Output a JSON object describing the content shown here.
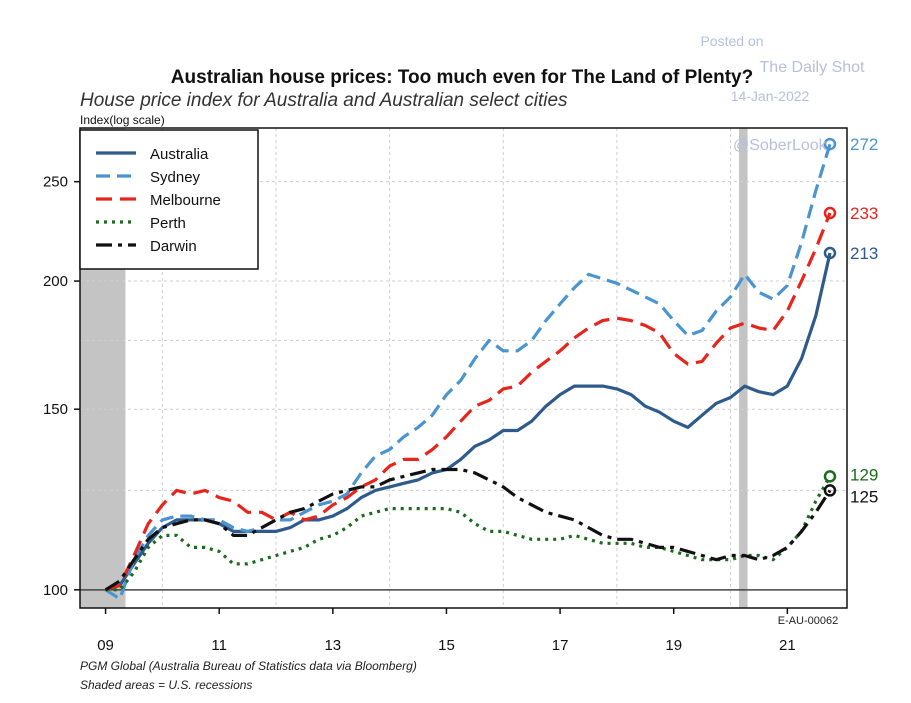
{
  "watermark": {
    "posted_on": "Posted on",
    "source": "The Daily Shot",
    "date": "14-Jan-2022",
    "handle": "@SoberLook"
  },
  "chart_data": {
    "type": "line",
    "title": "Australian house prices: Too much even for The Land of Plenty?",
    "subtitle": "House price index for Australia and Australian select cities",
    "ylabel": "Index(log scale)",
    "yscale": "log",
    "ylim": [
      96,
      282
    ],
    "xlim": [
      2008.55,
      2022.05
    ],
    "y_ticks": [
      "100",
      "150",
      "200",
      "250"
    ],
    "y_tick_values": [
      100,
      150,
      200,
      250
    ],
    "y_grid_values": [
      100,
      125,
      150,
      175,
      200,
      250
    ],
    "x_ticks": [
      "09",
      "11",
      "13",
      "15",
      "17",
      "19",
      "21"
    ],
    "x_tick_values": [
      2009,
      2011,
      2013,
      2015,
      2017,
      2019,
      2021
    ],
    "x_grid_values": [
      2010,
      2012,
      2014,
      2016,
      2018,
      2020
    ],
    "recessions": [
      [
        2008.55,
        2009.35
      ],
      [
        2020.15,
        2020.3
      ]
    ],
    "legend_position": "top-left",
    "series": [
      {
        "name": "Australia",
        "color": "#2e5a8c",
        "dash": "solid",
        "end_label": "213",
        "x": [
          2009.0,
          2009.25,
          2009.5,
          2009.75,
          2010.0,
          2010.25,
          2010.5,
          2010.75,
          2011.0,
          2011.25,
          2011.5,
          2011.75,
          2012.0,
          2012.25,
          2012.5,
          2012.75,
          2013.0,
          2013.25,
          2013.5,
          2013.75,
          2014.0,
          2014.25,
          2014.5,
          2014.75,
          2015.0,
          2015.25,
          2015.5,
          2015.75,
          2016.0,
          2016.25,
          2016.5,
          2016.75,
          2017.0,
          2017.25,
          2017.5,
          2017.75,
          2018.0,
          2018.25,
          2018.5,
          2018.75,
          2019.0,
          2019.25,
          2019.5,
          2019.75,
          2020.0,
          2020.25,
          2020.5,
          2020.75,
          2021.0,
          2021.25,
          2021.5,
          2021.75
        ],
        "y": [
          100,
          101,
          106,
          111,
          115,
          117,
          117,
          117,
          116,
          114,
          114,
          114,
          114,
          115,
          117,
          117,
          118,
          120,
          123,
          125,
          126,
          127,
          128,
          130,
          131,
          134,
          138,
          140,
          143,
          143,
          146,
          151,
          155,
          158,
          158,
          158,
          157,
          155,
          151,
          149,
          146,
          144,
          148,
          152,
          154,
          158,
          156,
          155,
          158,
          168,
          185,
          213
        ]
      },
      {
        "name": "Sydney",
        "color": "#4a94d0",
        "dash": "14,7",
        "end_label": "272",
        "x": [
          2009.0,
          2009.25,
          2009.5,
          2009.75,
          2010.0,
          2010.25,
          2010.5,
          2010.75,
          2011.0,
          2011.25,
          2011.5,
          2011.75,
          2012.0,
          2012.25,
          2012.5,
          2012.75,
          2013.0,
          2013.25,
          2013.5,
          2013.75,
          2014.0,
          2014.25,
          2014.5,
          2014.75,
          2015.0,
          2015.25,
          2015.5,
          2015.75,
          2016.0,
          2016.25,
          2016.5,
          2016.75,
          2017.0,
          2017.25,
          2017.5,
          2017.75,
          2018.0,
          2018.25,
          2018.5,
          2018.75,
          2019.0,
          2019.25,
          2019.5,
          2019.75,
          2020.0,
          2020.25,
          2020.5,
          2020.75,
          2021.0,
          2021.25,
          2021.5,
          2021.75
        ],
        "y": [
          100,
          98,
          107,
          113,
          117,
          118,
          118,
          117,
          117,
          115,
          114,
          115,
          117,
          117,
          119,
          121,
          122,
          124,
          130,
          135,
          137,
          141,
          144,
          148,
          155,
          160,
          168,
          175,
          171,
          171,
          175,
          183,
          190,
          197,
          203,
          201,
          199,
          196,
          193,
          190,
          183,
          177,
          179,
          187,
          193,
          203,
          195,
          192,
          198,
          218,
          245,
          272
        ]
      },
      {
        "name": "Melbourne",
        "color": "#e8251d",
        "dash": "16,8",
        "end_label": "233",
        "x": [
          2009.0,
          2009.25,
          2009.5,
          2009.75,
          2010.0,
          2010.25,
          2010.5,
          2010.75,
          2011.0,
          2011.25,
          2011.5,
          2011.75,
          2012.0,
          2012.25,
          2012.5,
          2012.75,
          2013.0,
          2013.25,
          2013.5,
          2013.75,
          2014.0,
          2014.25,
          2014.5,
          2014.75,
          2015.0,
          2015.25,
          2015.5,
          2015.75,
          2016.0,
          2016.25,
          2016.5,
          2016.75,
          2017.0,
          2017.25,
          2017.5,
          2017.75,
          2018.0,
          2018.25,
          2018.5,
          2018.75,
          2019.0,
          2019.25,
          2019.5,
          2019.75,
          2020.0,
          2020.25,
          2020.5,
          2020.75,
          2021.0,
          2021.25,
          2021.5,
          2021.75
        ],
        "y": [
          100,
          101,
          108,
          116,
          121,
          125,
          124,
          125,
          123,
          122,
          119,
          119,
          117,
          119,
          117,
          118,
          121,
          123,
          126,
          128,
          132,
          134,
          134,
          137,
          141,
          146,
          151,
          153,
          157,
          158,
          163,
          167,
          171,
          176,
          180,
          183,
          184,
          183,
          181,
          178,
          170,
          166,
          167,
          174,
          180,
          182,
          180,
          179,
          187,
          200,
          215,
          233
        ]
      },
      {
        "name": "Perth",
        "color": "#1a6b1e",
        "dash": "3,5",
        "end_label": "129",
        "x": [
          2009.0,
          2009.25,
          2009.5,
          2009.75,
          2010.0,
          2010.25,
          2010.5,
          2010.75,
          2011.0,
          2011.25,
          2011.5,
          2011.75,
          2012.0,
          2012.25,
          2012.5,
          2012.75,
          2013.0,
          2013.25,
          2013.5,
          2013.75,
          2014.0,
          2014.25,
          2014.5,
          2014.75,
          2015.0,
          2015.25,
          2015.5,
          2015.75,
          2016.0,
          2016.25,
          2016.5,
          2016.75,
          2017.0,
          2017.25,
          2017.5,
          2017.75,
          2018.0,
          2018.25,
          2018.5,
          2018.75,
          2019.0,
          2019.25,
          2019.5,
          2019.75,
          2020.0,
          2020.25,
          2020.5,
          2020.75,
          2021.0,
          2021.25,
          2021.5,
          2021.75
        ],
        "y": [
          100,
          100,
          104,
          110,
          113,
          113,
          110,
          110,
          109,
          106,
          106,
          107,
          108,
          109,
          110,
          112,
          113,
          115,
          118,
          119,
          120,
          120,
          120,
          120,
          120,
          119,
          116,
          114,
          114,
          113,
          112,
          112,
          112,
          113,
          112,
          111,
          111,
          111,
          110,
          110,
          109,
          108,
          107,
          107,
          107,
          108,
          108,
          107,
          110,
          114,
          122,
          129
        ]
      },
      {
        "name": "Darwin",
        "color": "#111111",
        "dash": "16,6,4,6",
        "end_label": "125",
        "x": [
          2009.0,
          2009.25,
          2009.5,
          2009.75,
          2010.0,
          2010.25,
          2010.5,
          2010.75,
          2011.0,
          2011.25,
          2011.5,
          2011.75,
          2012.0,
          2012.25,
          2012.5,
          2012.75,
          2013.0,
          2013.25,
          2013.5,
          2013.75,
          2014.0,
          2014.25,
          2014.5,
          2014.75,
          2015.0,
          2015.25,
          2015.5,
          2015.75,
          2016.0,
          2016.25,
          2016.5,
          2016.75,
          2017.0,
          2017.25,
          2017.5,
          2017.75,
          2018.0,
          2018.25,
          2018.5,
          2018.75,
          2019.0,
          2019.25,
          2019.5,
          2019.75,
          2020.0,
          2020.25,
          2020.5,
          2020.75,
          2021.0,
          2021.25,
          2021.5,
          2021.75
        ],
        "y": [
          100,
          102,
          107,
          112,
          115,
          116,
          117,
          117,
          116,
          113,
          113,
          115,
          117,
          119,
          120,
          122,
          124,
          125,
          126,
          126,
          128,
          129,
          130,
          131,
          131,
          131,
          130,
          128,
          126,
          123,
          121,
          119,
          118,
          117,
          115,
          113,
          112,
          112,
          111,
          110,
          110,
          109,
          108,
          107,
          108,
          108,
          107,
          108,
          110,
          114,
          119,
          125
        ]
      }
    ],
    "source_note": "PGM Global (Australia Bureau of Statistics data via Bloomberg)",
    "recession_note": "Shaded areas = U.S. recessions",
    "chart_code": "E-AU-00062"
  }
}
